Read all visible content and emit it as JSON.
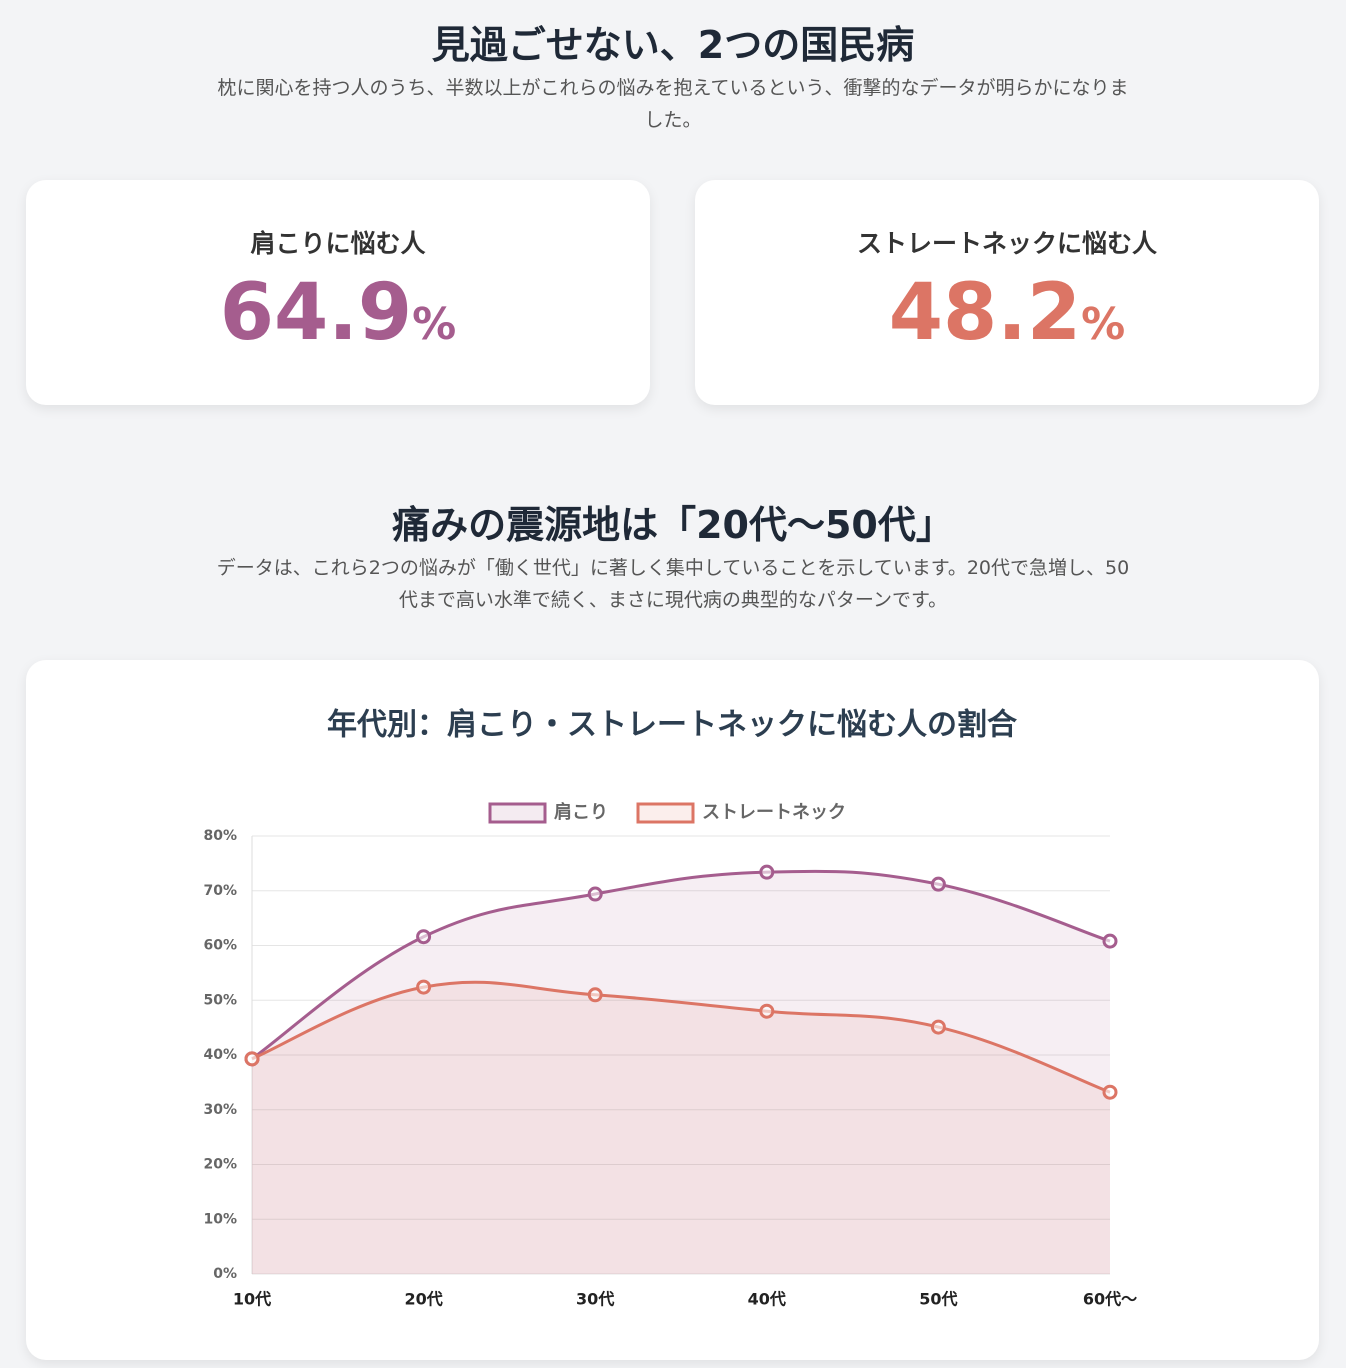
{
  "header": {
    "title": "見過ごせない、2つの国民病",
    "subtitle": "枕に関心を持つ人のうち、半数以上がこれらの悩みを抱えているという、衝撃的なデータが明らかになりました。"
  },
  "stats": [
    {
      "label": "肩こりに悩む人",
      "value": 64.9,
      "unit": "%",
      "color": "#a55d8e"
    },
    {
      "label": "ストレートネックに悩む人",
      "value": 48.2,
      "unit": "%",
      "color": "#dc7565"
    }
  ],
  "section": {
    "title": "痛みの震源地は「20代〜50代」",
    "text": "データは、これら2つの悩みが「働く世代」に著しく集中していることを示しています。20代で急増し、50代まで高い水準で続く、まさに現代病の典型的なパターンです。"
  },
  "chart_data": {
    "type": "line",
    "title": "年代別：肩こり・ストレートネックに悩む人の割合",
    "categories": [
      "10代",
      "20代",
      "30代",
      "40代",
      "50代",
      "60代〜"
    ],
    "series": [
      {
        "name": "肩こり",
        "color": "#a55d8e",
        "values": [
          39.3,
          61.6,
          69.4,
          73.4,
          71.2,
          60.8
        ]
      },
      {
        "name": "ストレートネック",
        "color": "#dc7565",
        "values": [
          39.3,
          52.4,
          51.0,
          48.0,
          45.1,
          33.2
        ]
      }
    ],
    "ylim": [
      0,
      80
    ],
    "yticks": [
      {
        "value": 0,
        "label": "0%"
      },
      {
        "value": 10,
        "label": "10%"
      },
      {
        "value": 20,
        "label": "20%"
      },
      {
        "value": 30,
        "label": "30%"
      },
      {
        "value": 40,
        "label": "40%"
      },
      {
        "value": 50,
        "label": "50%"
      },
      {
        "value": 60,
        "label": "60%"
      },
      {
        "value": 70,
        "label": "70%"
      },
      {
        "value": 80,
        "label": "80%"
      }
    ],
    "grid": true,
    "legend": "top",
    "fill": true
  }
}
